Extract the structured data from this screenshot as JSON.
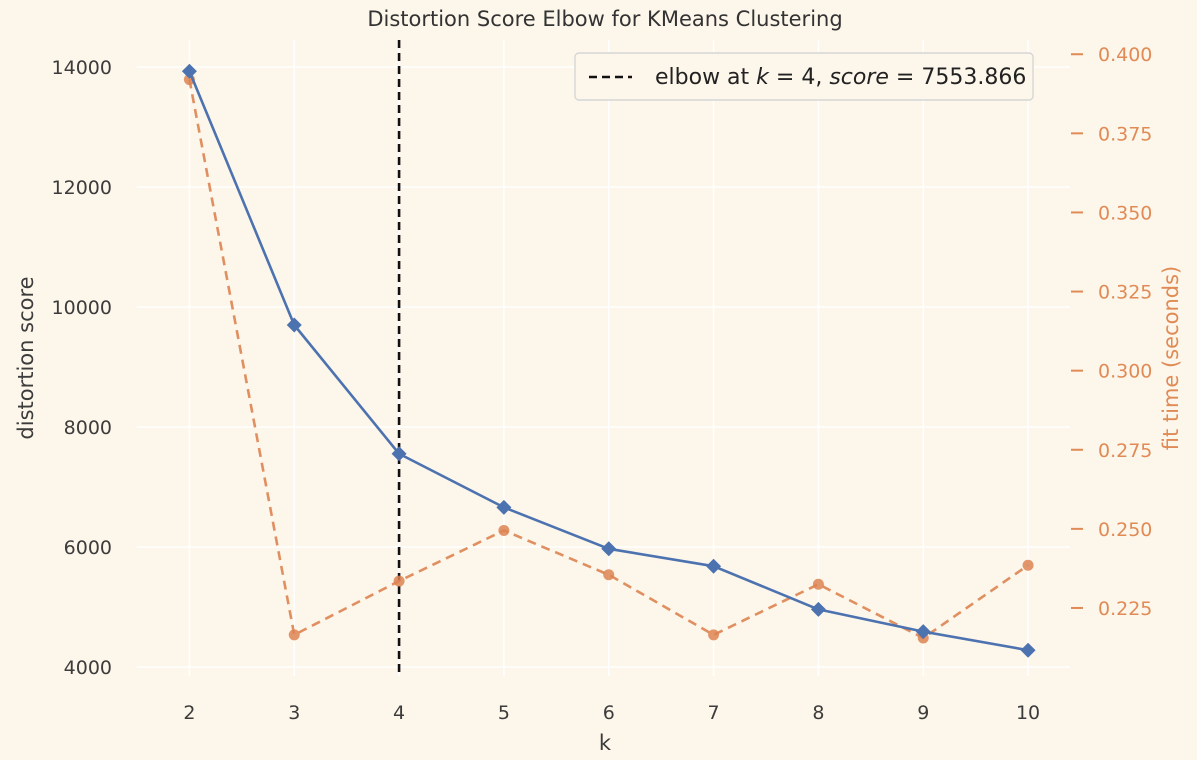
{
  "chart_data": {
    "type": "line",
    "title": "Distortion Score Elbow for KMeans Clustering",
    "xlabel": "k",
    "ylabel": "distortion score",
    "y2label": "fit time (seconds)",
    "x": [
      2,
      3,
      4,
      5,
      6,
      7,
      8,
      9,
      10
    ],
    "xlim": [
      1.5,
      10.4
    ],
    "ylim": [
      3850,
      14450
    ],
    "y2lim": [
      0.2035,
      0.4045
    ],
    "yticks": [
      4000,
      6000,
      8000,
      10000,
      12000,
      14000
    ],
    "y2ticks": [
      0.225,
      0.25,
      0.275,
      0.3,
      0.325,
      0.35,
      0.375,
      0.4
    ],
    "y2tick_labels": [
      "0.225",
      "0.250",
      "0.275",
      "0.300",
      "0.325",
      "0.350",
      "0.375",
      "0.400"
    ],
    "grid": true,
    "series": [
      {
        "name": "distortion score",
        "axis": "left",
        "values": [
          13930,
          9700,
          7553.866,
          6660,
          5970,
          5680,
          4960,
          4590,
          4280
        ],
        "color": "#4c72b0",
        "marker": "diamond",
        "linestyle": "solid"
      },
      {
        "name": "fit time",
        "axis": "right",
        "values": [
          0.392,
          0.2165,
          0.2335,
          0.2495,
          0.2355,
          0.2165,
          0.2325,
          0.2155,
          0.2385
        ],
        "color": "#dd8452",
        "marker": "circle",
        "linestyle": "dashed"
      }
    ],
    "elbow": {
      "k": 4,
      "score": 7553.866,
      "legend_prefix": "elbow at ",
      "legend_k_var": "k",
      "legend_k_eq": " = 4, ",
      "legend_score_var": "score",
      "legend_score_eq": " = 7553.866",
      "legend_position": "top-right"
    }
  },
  "colors": {
    "background": "#fdf6ea",
    "grid": "#ffffff",
    "left_axis_text": "#3c3c3c",
    "right_axis_text": "#e08b56",
    "elbow_line": "#111111"
  }
}
